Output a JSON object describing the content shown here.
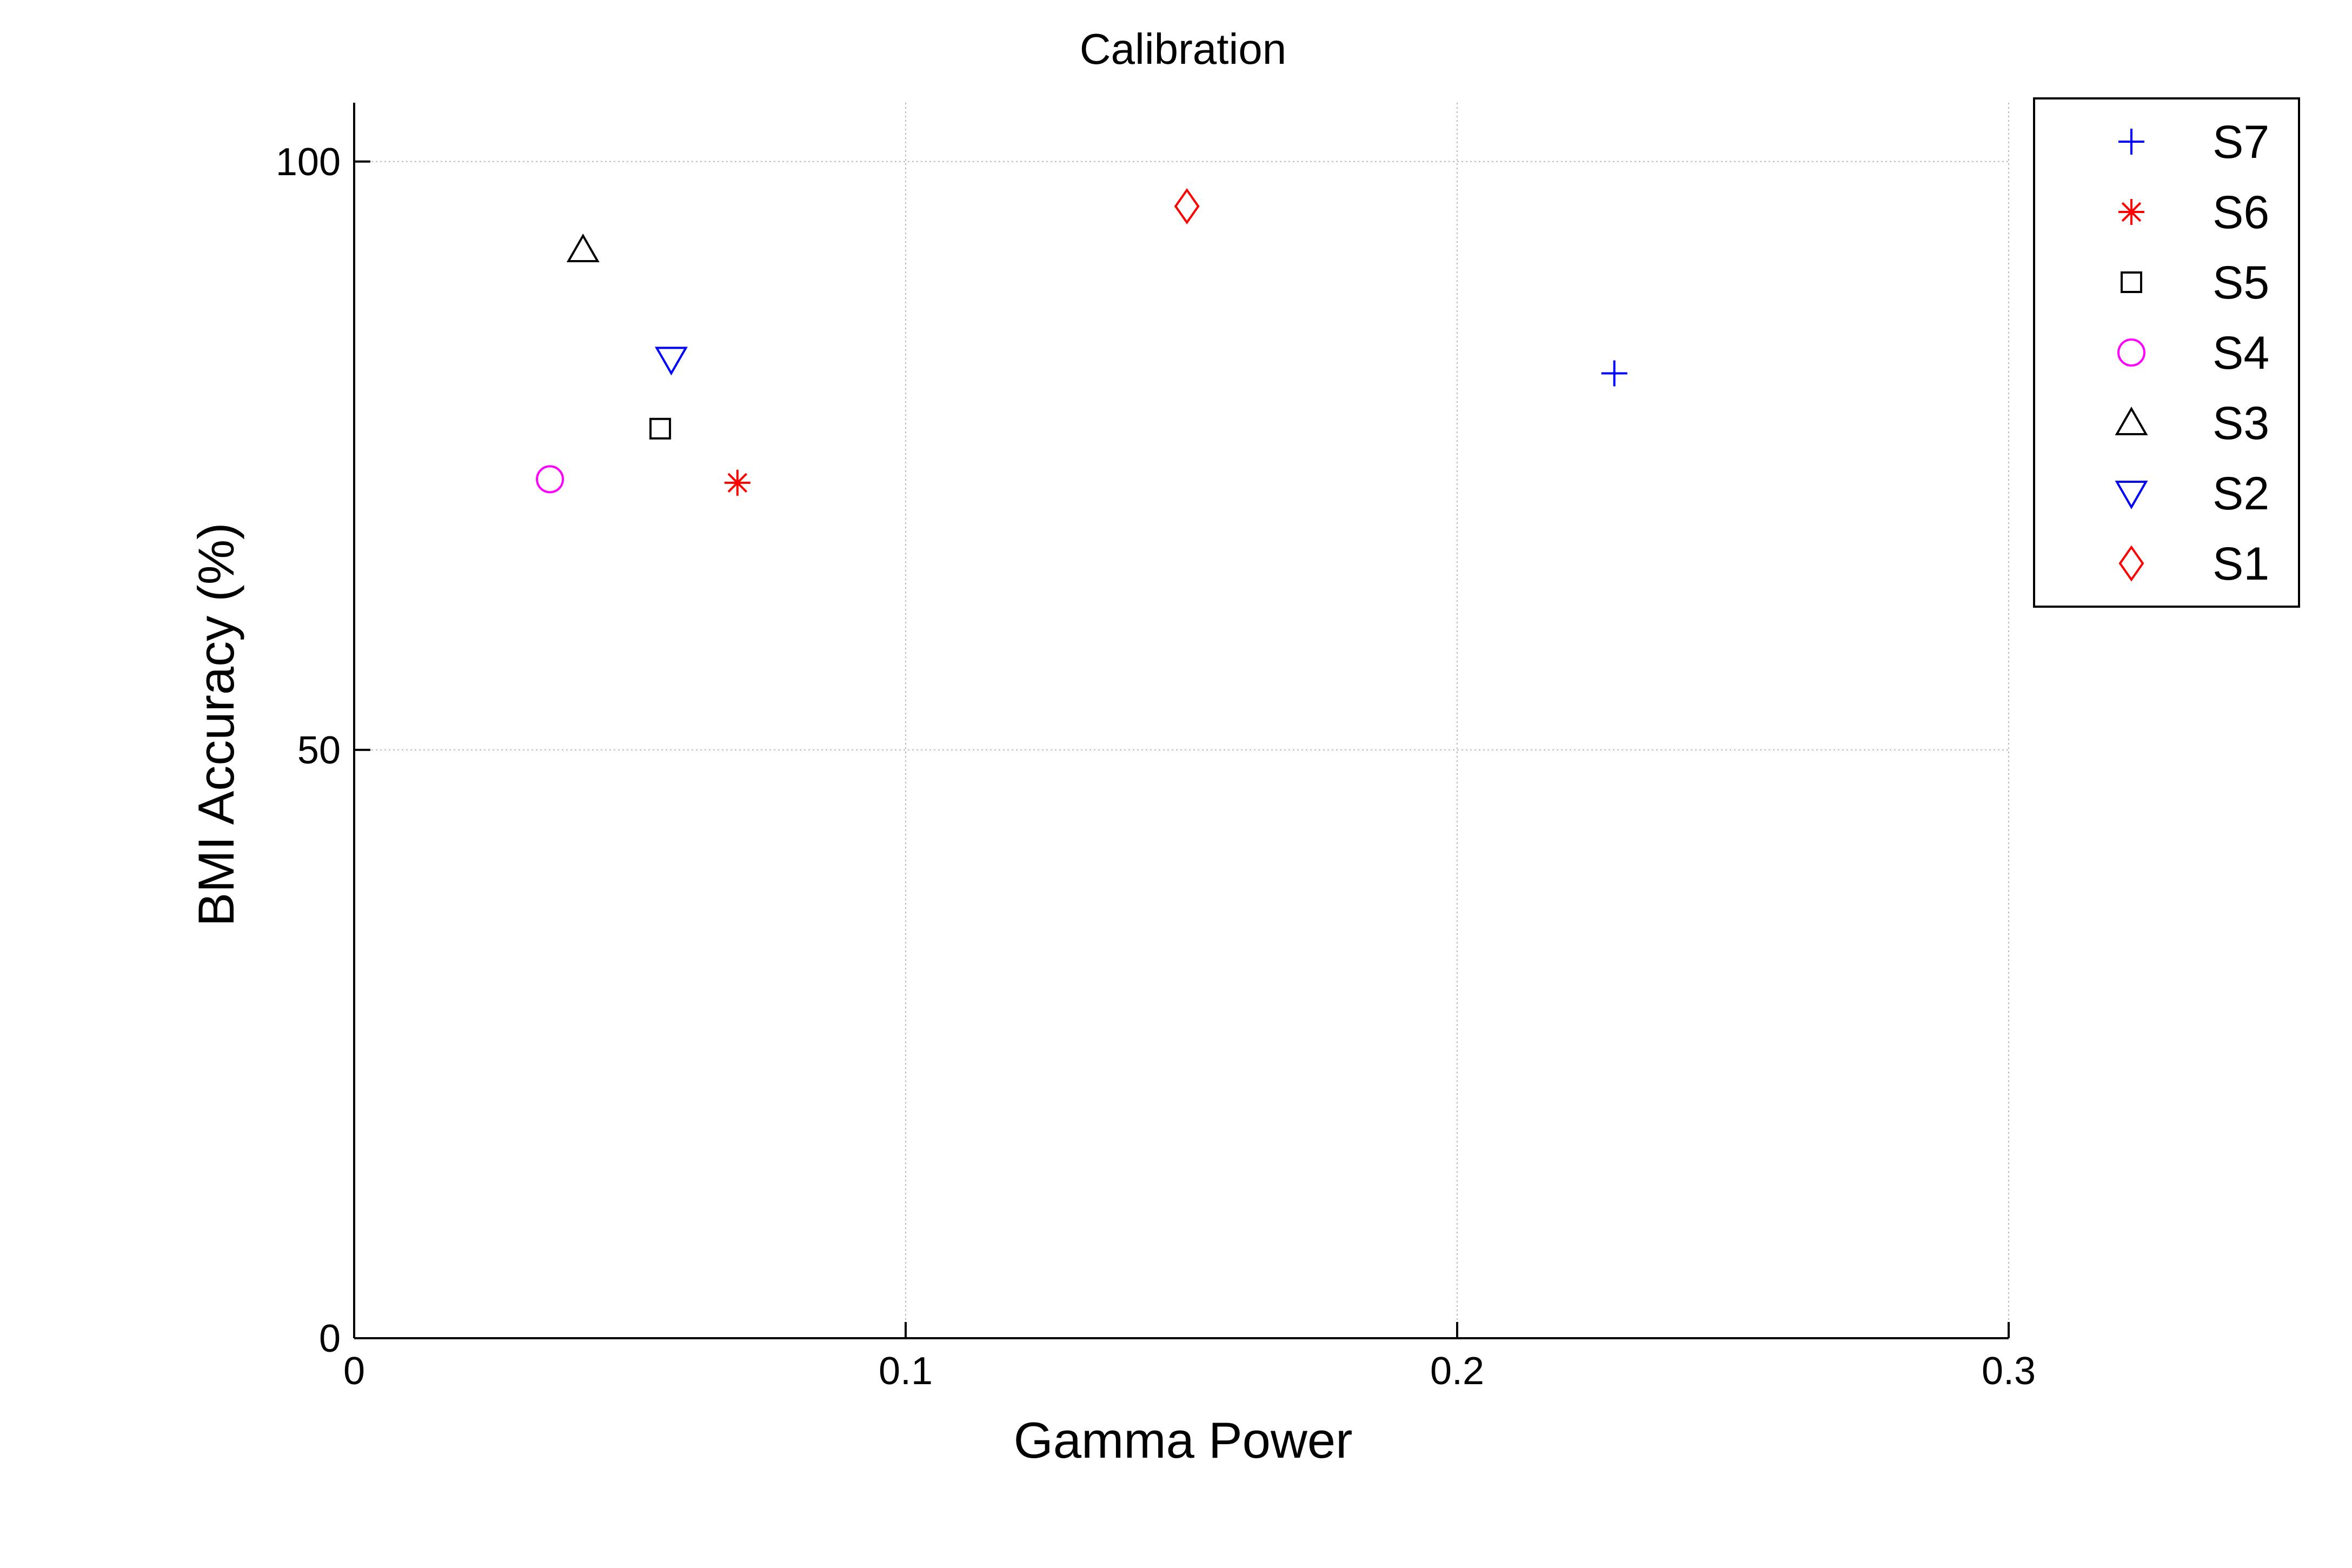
{
  "chart_data": {
    "type": "scatter",
    "title": "Calibration",
    "xlabel": "Gamma Power",
    "ylabel": "BMI Accuracy (%)",
    "xlim": [
      0,
      0.3
    ],
    "ylim": [
      0,
      105
    ],
    "x_ticks": [
      0,
      0.1,
      0.2,
      0.3
    ],
    "x_tick_labels": [
      "0",
      "0.1",
      "0.2",
      "0.3"
    ],
    "y_ticks": [
      0,
      50,
      100
    ],
    "y_tick_labels": [
      "0",
      "50",
      "100"
    ],
    "grid": true,
    "legend_position": "outside-top-right",
    "series": [
      {
        "name": "S7",
        "marker": "plus",
        "color": "#0000ff",
        "x": 0.2285,
        "y": 82
      },
      {
        "name": "S6",
        "marker": "asterisk",
        "color": "#ff0000",
        "x": 0.0695,
        "y": 72.7
      },
      {
        "name": "S5",
        "marker": "square",
        "color": "#000000",
        "x": 0.0555,
        "y": 77.3
      },
      {
        "name": "S4",
        "marker": "circle",
        "color": "#ff00ff",
        "x": 0.0355,
        "y": 73
      },
      {
        "name": "S3",
        "marker": "triangle-up",
        "color": "#000000",
        "x": 0.0415,
        "y": 92.5
      },
      {
        "name": "S2",
        "marker": "triangle-down",
        "color": "#0000ff",
        "x": 0.0575,
        "y": 83.2
      },
      {
        "name": "S1",
        "marker": "diamond",
        "color": "#ff0000",
        "x": 0.151,
        "y": 96.2
      }
    ]
  }
}
